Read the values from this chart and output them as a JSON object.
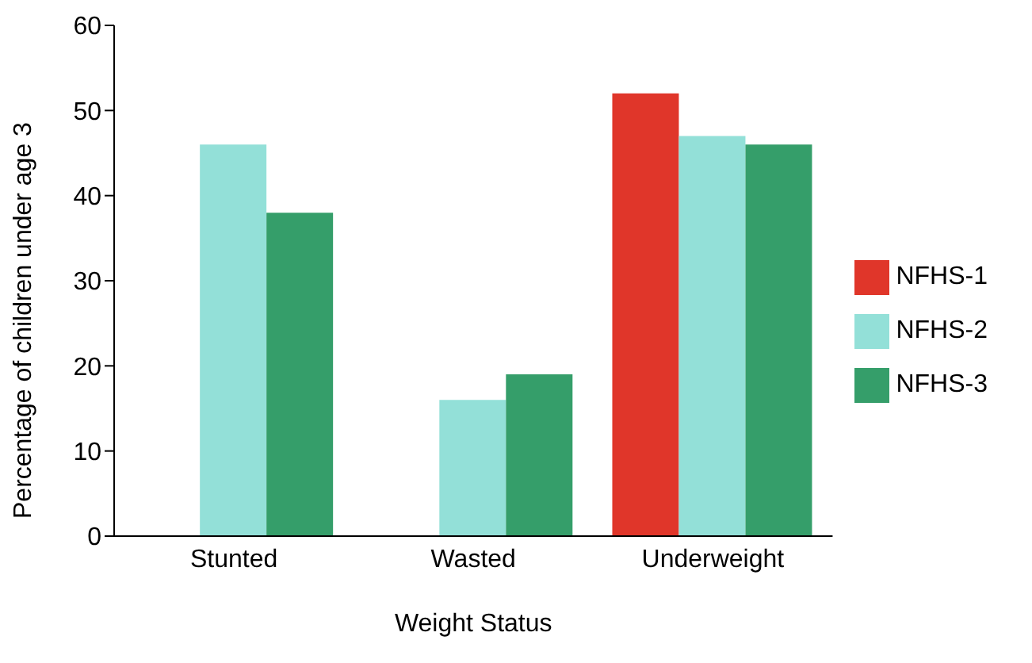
{
  "chart_data": {
    "type": "bar",
    "xlabel": "Weight Status",
    "ylabel": "Percentage of children under age 3",
    "categories": [
      "Stunted",
      "Wasted",
      "Underweight"
    ],
    "series": [
      {
        "name": "NFHS-1",
        "color": "#e0362a",
        "values": [
          null,
          null,
          52
        ]
      },
      {
        "name": "NFHS-2",
        "color": "#93e0d8",
        "values": [
          46,
          16,
          47
        ]
      },
      {
        "name": "NFHS-3",
        "color": "#359e6a",
        "values": [
          38,
          19,
          46
        ]
      }
    ],
    "ylim": [
      0,
      60
    ],
    "yticks": [
      0,
      10,
      20,
      30,
      40,
      50,
      60
    ],
    "grid": false,
    "legend": "right"
  }
}
